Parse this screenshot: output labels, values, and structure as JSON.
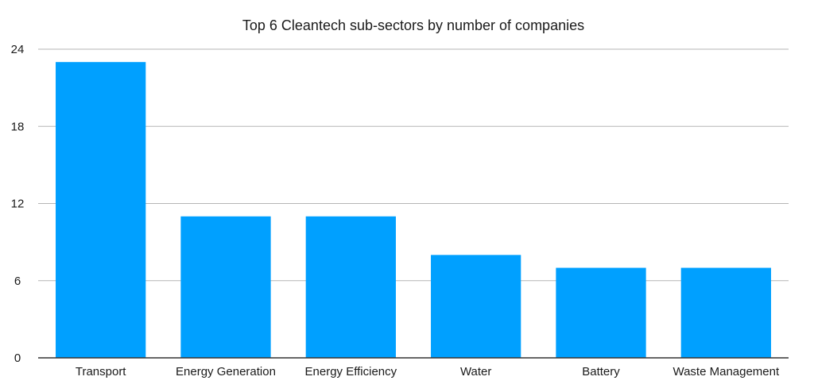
{
  "chart_data": {
    "type": "bar",
    "title": "Top 6 Cleantech sub-sectors by number of companies",
    "xlabel": "",
    "ylabel": "",
    "categories": [
      "Transport",
      "Energy Generation",
      "Energy Efficiency",
      "Water",
      "Battery",
      "Waste Management"
    ],
    "values": [
      23,
      11,
      11,
      8,
      7,
      7
    ],
    "ylim": [
      0,
      24
    ],
    "yticks": [
      "0",
      "6",
      "12",
      "18",
      "24"
    ],
    "grid": true,
    "legend": "none",
    "bar_color": "#00a0ff"
  }
}
